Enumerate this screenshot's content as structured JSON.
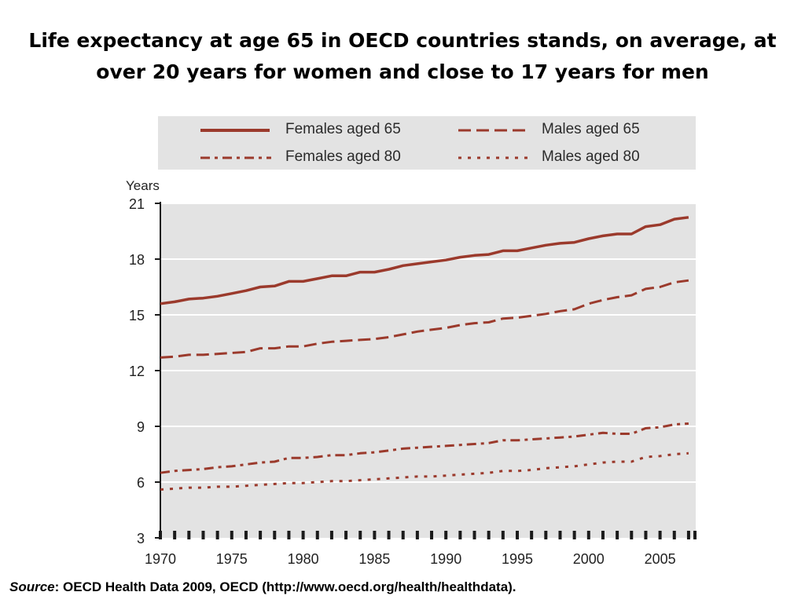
{
  "slide": {
    "title_line1": "Life expectancy at age 65 in OECD countries stands, on average, at",
    "title_line2": "over 20 years for women and close to 17 years for men"
  },
  "source": {
    "label": "Source",
    "text": ": OECD Health Data 2009, OECD (http://www.oecd.org/health/healthdata)."
  },
  "colors": {
    "series": "#9b3a2c",
    "plot_background": "#e3e3e3",
    "gridline": "#ffffff",
    "axis": "#1a1a1a"
  },
  "chart_data": {
    "type": "line",
    "ylabel": "Years",
    "xlabel": "",
    "ylim": [
      3,
      21
    ],
    "xlim": [
      1970,
      2007.5
    ],
    "yticks": [
      3,
      6,
      9,
      12,
      15,
      18,
      21
    ],
    "xticks": [
      1970,
      1975,
      1980,
      1985,
      1990,
      1995,
      2000,
      2005
    ],
    "grid": true,
    "legend_position": "top",
    "x": [
      1970,
      1971,
      1972,
      1973,
      1974,
      1975,
      1976,
      1977,
      1978,
      1979,
      1980,
      1981,
      1982,
      1983,
      1984,
      1985,
      1986,
      1987,
      1988,
      1989,
      1990,
      1991,
      1992,
      1993,
      1994,
      1995,
      1996,
      1997,
      1998,
      1999,
      2000,
      2001,
      2002,
      2003,
      2004,
      2005,
      2006,
      2007
    ],
    "series": [
      {
        "name": "Females aged 65",
        "style": "solid",
        "values": [
          15.6,
          15.7,
          15.85,
          15.9,
          16.0,
          16.15,
          16.3,
          16.5,
          16.55,
          16.8,
          16.8,
          16.95,
          17.1,
          17.1,
          17.3,
          17.3,
          17.45,
          17.65,
          17.75,
          17.85,
          17.95,
          18.1,
          18.2,
          18.25,
          18.45,
          18.45,
          18.6,
          18.75,
          18.85,
          18.9,
          19.1,
          19.25,
          19.35,
          19.35,
          19.75,
          19.85,
          20.15,
          20.25
        ]
      },
      {
        "name": "Males aged 65",
        "style": "dashed",
        "values": [
          12.7,
          12.75,
          12.85,
          12.85,
          12.9,
          12.95,
          13.0,
          13.2,
          13.2,
          13.3,
          13.3,
          13.45,
          13.55,
          13.6,
          13.65,
          13.7,
          13.8,
          13.95,
          14.1,
          14.2,
          14.3,
          14.45,
          14.55,
          14.6,
          14.8,
          14.85,
          14.95,
          15.05,
          15.2,
          15.3,
          15.6,
          15.8,
          15.95,
          16.05,
          16.4,
          16.5,
          16.75,
          16.85
        ]
      },
      {
        "name": "Females aged 80",
        "style": "dash-dot",
        "values": [
          6.5,
          6.6,
          6.65,
          6.7,
          6.8,
          6.85,
          6.95,
          7.05,
          7.1,
          7.3,
          7.3,
          7.35,
          7.45,
          7.45,
          7.55,
          7.6,
          7.7,
          7.8,
          7.85,
          7.9,
          7.95,
          8.0,
          8.05,
          8.1,
          8.25,
          8.25,
          8.3,
          8.35,
          8.4,
          8.45,
          8.55,
          8.65,
          8.6,
          8.6,
          8.9,
          8.95,
          9.1,
          9.15
        ]
      },
      {
        "name": "Males aged 80",
        "style": "dotted",
        "values": [
          5.6,
          5.65,
          5.7,
          5.7,
          5.75,
          5.75,
          5.8,
          5.85,
          5.9,
          5.95,
          5.95,
          6.0,
          6.05,
          6.05,
          6.1,
          6.15,
          6.2,
          6.25,
          6.3,
          6.3,
          6.35,
          6.4,
          6.45,
          6.5,
          6.6,
          6.6,
          6.65,
          6.75,
          6.8,
          6.85,
          6.95,
          7.05,
          7.1,
          7.1,
          7.35,
          7.4,
          7.5,
          7.55
        ]
      }
    ]
  }
}
